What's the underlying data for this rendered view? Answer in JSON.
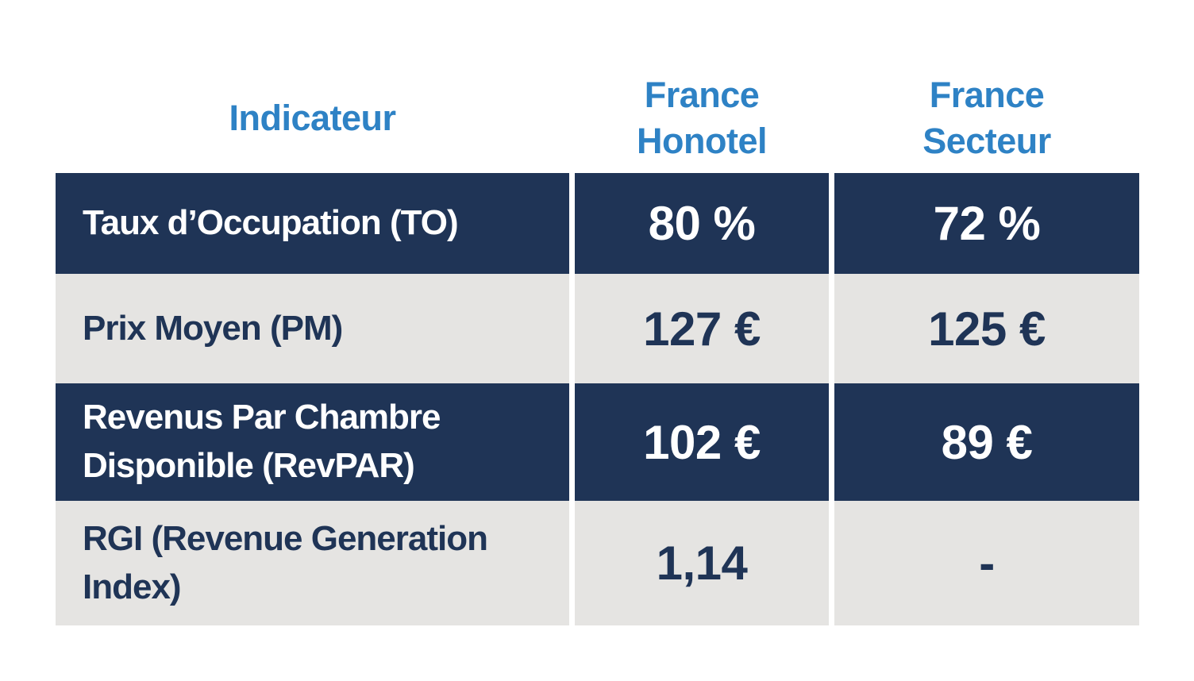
{
  "colors": {
    "header_text_blue": "#2E82C5",
    "row_dark_navy": "#1F3456",
    "row_light_gray": "#E5E4E2",
    "text_on_dark": "#FFFFFF",
    "text_on_light": "#1F3456",
    "page_background": "#FFFFFF"
  },
  "table": {
    "headers": [
      {
        "label": "Indicateur"
      },
      {
        "label": "France Honotel"
      },
      {
        "label": "France Secteur"
      }
    ],
    "rows": [
      {
        "label": "Taux d’Occupation (TO)",
        "honotel": "80 %",
        "secteur": "72 %",
        "variant": "dark"
      },
      {
        "label": "Prix Moyen (PM)",
        "honotel": "127 €",
        "secteur": "125 €",
        "variant": "light"
      },
      {
        "label": "Revenus Par Chambre Disponible (RevPAR)",
        "honotel": "102 €",
        "secteur": "89 €",
        "variant": "dark"
      },
      {
        "label": "RGI (Revenue Generation Index)",
        "honotel": "1,14",
        "secteur": "-",
        "variant": "light"
      }
    ]
  },
  "chart_data": {
    "type": "table",
    "title": "",
    "columns": [
      "Indicateur",
      "France Honotel",
      "France Secteur"
    ],
    "rows": [
      [
        "Taux d’Occupation (TO)",
        "80 %",
        "72 %"
      ],
      [
        "Prix Moyen (PM)",
        "127 €",
        "125 €"
      ],
      [
        "Revenus Par Chambre Disponible (RevPAR)",
        "102 €",
        "89 €"
      ],
      [
        "RGI (Revenue Generation Index)",
        "1,14",
        "-"
      ]
    ],
    "numeric": {
      "taux_occupation_pct": {
        "france_honotel": 80,
        "france_secteur": 72
      },
      "prix_moyen_eur": {
        "france_honotel": 127,
        "france_secteur": 125
      },
      "revpar_eur": {
        "france_honotel": 102,
        "france_secteur": 89
      },
      "rgi": {
        "france_honotel": 1.14,
        "france_secteur": null
      }
    },
    "layout": {
      "row_striping": [
        "dark",
        "light",
        "dark",
        "light"
      ],
      "header_background": "none"
    }
  }
}
